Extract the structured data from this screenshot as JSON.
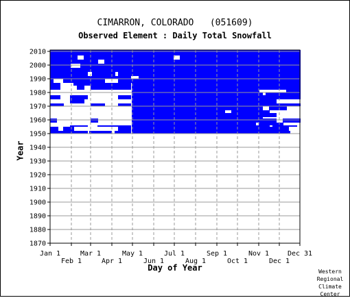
{
  "chart_data": {
    "type": "heatmap",
    "title": "CIMARRON, COLORADO   (051609)",
    "subtitle": "Observed Element : Daily Total Snowfall",
    "xlabel": "Day of Year",
    "ylabel": "Year",
    "ylim": [
      1870,
      2011
    ],
    "xlim_days": [
      1,
      365
    ],
    "y_ticks": [
      1870,
      1880,
      1890,
      1900,
      1910,
      1920,
      1930,
      1940,
      1950,
      1960,
      1970,
      1980,
      1990,
      2000,
      2010
    ],
    "x_ticks_top_row": [
      {
        "label": "Jan 1",
        "day": 1
      },
      {
        "label": "Mar 1",
        "day": 60
      },
      {
        "label": "May 1",
        "day": 121
      },
      {
        "label": "Jul 1",
        "day": 182
      },
      {
        "label": "Sep 1",
        "day": 244
      },
      {
        "label": "Nov 1",
        "day": 305
      },
      {
        "label": "Dec 31",
        "day": 365
      }
    ],
    "x_ticks_bottom_row": [
      {
        "label": "Feb 1",
        "day": 32
      },
      {
        "label": "Apr 1",
        "day": 91
      },
      {
        "label": "Jun 1",
        "day": 152
      },
      {
        "label": "Aug 1",
        "day": 213
      },
      {
        "label": "Oct 1",
        "day": 274
      },
      {
        "label": "Dec 1",
        "day": 335
      }
    ],
    "grid": true,
    "legend": "none",
    "colors": {
      "data_present": "#0000ff",
      "background": "#ffffff",
      "grid": "#999999"
    },
    "record_period": [
      1950,
      2010
    ],
    "data_rows": [
      {
        "years": [
          1950,
          1951
        ],
        "segments": [
          [
            1,
            55
          ],
          [
            58,
            90
          ],
          [
            95,
            118
          ],
          [
            120,
            350
          ]
        ]
      },
      {
        "years": [
          1952,
          1954
        ],
        "segments": [
          [
            1,
            12
          ],
          [
            20,
            35
          ],
          [
            100,
            118
          ],
          [
            120,
            348
          ]
        ]
      },
      {
        "years": [
          1955,
          1955
        ],
        "segments": [
          [
            30,
            55
          ],
          [
            70,
            118
          ],
          [
            120,
            320
          ],
          [
            325,
            360
          ]
        ]
      },
      {
        "years": [
          1956,
          1957
        ],
        "segments": [
          [
            120,
            300
          ],
          [
            305,
            340
          ]
        ]
      },
      {
        "years": [
          1958,
          1960
        ],
        "segments": [
          [
            1,
            10
          ],
          [
            60,
            70
          ],
          [
            120,
            330
          ],
          [
            340,
            365
          ]
        ]
      },
      {
        "years": [
          1961,
          1961
        ],
        "segments": [
          [
            120,
            310
          ]
        ]
      },
      {
        "years": [
          1962,
          1964
        ],
        "segments": [
          [
            120,
            330
          ]
        ]
      },
      {
        "years": [
          1965,
          1966
        ],
        "segments": [
          [
            120,
            255
          ],
          [
            265,
            320
          ]
        ]
      },
      {
        "years": [
          1967,
          1969
        ],
        "segments": [
          [
            120,
            310
          ],
          [
            320,
            345
          ]
        ]
      },
      {
        "years": [
          1970,
          1971
        ],
        "segments": [
          [
            1,
            20
          ],
          [
            60,
            80
          ],
          [
            100,
            118
          ],
          [
            120,
            365
          ]
        ]
      },
      {
        "years": [
          1972,
          1974
        ],
        "segments": [
          [
            30,
            50
          ],
          [
            120,
            330
          ]
        ]
      },
      {
        "years": [
          1975,
          1977
        ],
        "segments": [
          [
            1,
            15
          ],
          [
            30,
            55
          ],
          [
            100,
            118
          ],
          [
            120,
            365
          ]
        ]
      },
      {
        "years": [
          1978,
          1979
        ],
        "segments": [
          [
            120,
            310
          ],
          [
            315,
            365
          ]
        ]
      },
      {
        "years": [
          1980,
          1981
        ],
        "segments": [
          [
            120,
            305
          ],
          [
            345,
            365
          ]
        ]
      },
      {
        "years": [
          1982,
          1984
        ],
        "segments": [
          [
            1,
            15
          ],
          [
            40,
            50
          ],
          [
            60,
            118
          ],
          [
            120,
            365
          ]
        ]
      },
      {
        "years": [
          1985,
          1986
        ],
        "segments": [
          [
            1,
            15
          ],
          [
            35,
            118
          ],
          [
            120,
            365
          ]
        ]
      },
      {
        "years": [
          1987,
          1989
        ],
        "segments": [
          [
            1,
            5
          ],
          [
            20,
            80
          ],
          [
            100,
            365
          ]
        ]
      },
      {
        "years": [
          1990,
          1991
        ],
        "segments": [
          [
            1,
            118
          ],
          [
            130,
            365
          ]
        ]
      },
      {
        "years": [
          1992,
          1994
        ],
        "segments": [
          [
            1,
            55
          ],
          [
            62,
            95
          ],
          [
            100,
            365
          ]
        ]
      },
      {
        "years": [
          1995,
          1997
        ],
        "segments": [
          [
            1,
            365
          ]
        ]
      },
      {
        "years": [
          1998,
          2000
        ],
        "segments": [
          [
            1,
            30
          ],
          [
            45,
            365
          ]
        ]
      },
      {
        "years": [
          2001,
          2003
        ],
        "segments": [
          [
            1,
            70
          ],
          [
            80,
            365
          ]
        ]
      },
      {
        "years": [
          2004,
          2006
        ],
        "segments": [
          [
            1,
            40
          ],
          [
            50,
            180
          ],
          [
            190,
            365
          ]
        ]
      },
      {
        "years": [
          2007,
          2008
        ],
        "segments": [
          [
            1,
            365
          ]
        ]
      },
      {
        "years": [
          2009,
          2010
        ],
        "segments": [
          [
            1,
            365
          ]
        ]
      }
    ]
  },
  "footer": {
    "credit_lines": [
      "Western",
      "Regional",
      "Climate",
      "Center"
    ]
  }
}
